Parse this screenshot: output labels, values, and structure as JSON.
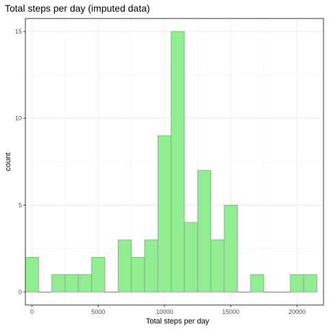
{
  "chart_data": {
    "type": "bar",
    "title": "Total steps per day (imputed data)",
    "xlabel": "Total steps per day",
    "ylabel": "count",
    "xlim": [
      -500,
      22000
    ],
    "ylim": [
      -0.75,
      15.75
    ],
    "x_ticks": [
      0,
      5000,
      10000,
      15000,
      20000
    ],
    "x_tick_labels": [
      "0",
      "5000",
      "10000",
      "15000",
      "20000"
    ],
    "y_ticks": [
      0,
      5,
      10,
      15
    ],
    "y_tick_labels": [
      "0",
      "5",
      "10",
      "15"
    ],
    "bin_width": 1000,
    "bin_centers": [
      0,
      1000,
      2000,
      3000,
      4000,
      5000,
      6000,
      7000,
      8000,
      9000,
      10000,
      11000,
      12000,
      13000,
      14000,
      15000,
      16000,
      17000,
      18000,
      19000,
      20000,
      21000
    ],
    "values": [
      2,
      0,
      1,
      1,
      1,
      2,
      0,
      3,
      2,
      3,
      9,
      15,
      4,
      7,
      3,
      5,
      0,
      1,
      0,
      0,
      1,
      1
    ],
    "grid": true,
    "bar_fill": "#90ee90",
    "bar_stroke": "#8c8c8c",
    "grid_color": "#ebebeb",
    "panel_border": "#333333"
  }
}
